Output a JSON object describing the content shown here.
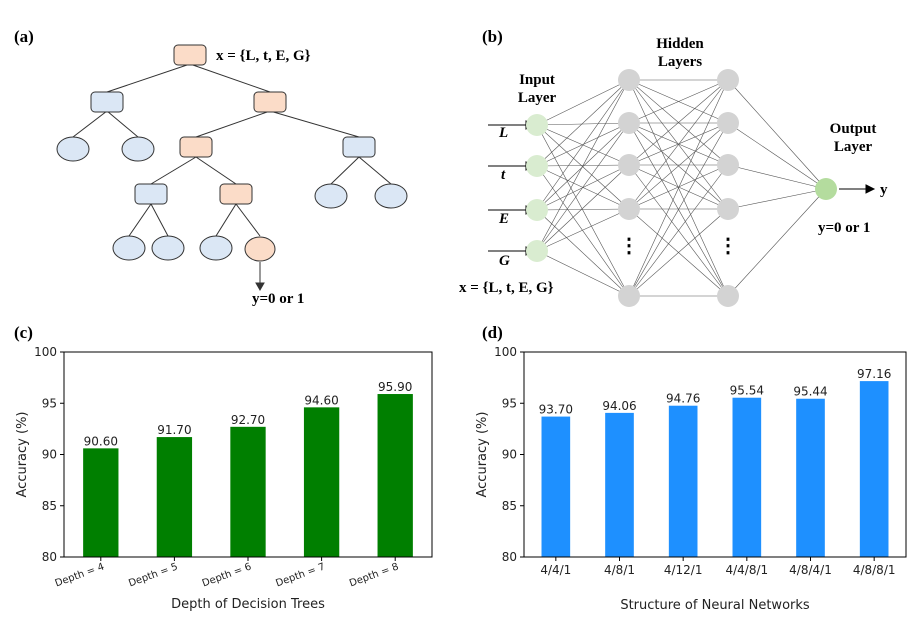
{
  "panels": {
    "a": "(a)",
    "b": "(b)",
    "c": "(c)",
    "d": "(d)"
  },
  "tree": {
    "root_annotation": "x = {L, t, E, G}",
    "output_annotation": "y=0 or 1"
  },
  "network": {
    "hidden_title_line1": "Hidden",
    "hidden_title_line2": "Layers",
    "input_title_line1": "Input",
    "input_title_line2": "Layer",
    "output_title_line1": "Output",
    "output_title_line2": "Layer",
    "inputs": [
      "L",
      "t",
      "E",
      "G"
    ],
    "output_var": "y",
    "output_annotation": "y=0 or 1",
    "input_annotation": "x = {L, t, E, G}",
    "ellipsis": "⋮"
  },
  "colors": {
    "tree_orange": "#fbdcc8",
    "tree_blue": "#dbe7f5",
    "nn_input": "#d9ecd0",
    "nn_hidden": "#d3d3d3",
    "nn_output": "#b4dc9e",
    "bar_green": "#007f00",
    "bar_blue": "#1e90ff"
  },
  "chart_data": [
    {
      "type": "bar",
      "categories": [
        "Depth = 4",
        "Depth = 5",
        "Depth = 6",
        "Depth = 7",
        "Depth = 8"
      ],
      "values": [
        90.6,
        91.7,
        92.7,
        94.6,
        95.9
      ],
      "value_labels": [
        "90.60",
        "91.70",
        "92.70",
        "94.60",
        "95.90"
      ],
      "xlabel": "Depth of Decision Trees",
      "ylabel": "Accuracy (%)",
      "ylim": [
        80,
        100
      ],
      "yticks": [
        "80",
        "85",
        "90",
        "95",
        "100"
      ],
      "color": "#007f00"
    },
    {
      "type": "bar",
      "categories": [
        "4/4/1",
        "4/8/1",
        "4/12/1",
        "4/4/8/1",
        "4/8/4/1",
        "4/8/8/1"
      ],
      "values": [
        93.7,
        94.06,
        94.76,
        95.54,
        95.44,
        97.16
      ],
      "value_labels": [
        "93.70",
        "94.06",
        "94.76",
        "95.54",
        "95.44",
        "97.16"
      ],
      "xlabel": "Structure of Neural Networks",
      "ylabel": "Accuracy (%)",
      "ylim": [
        80,
        100
      ],
      "yticks": [
        "80",
        "85",
        "90",
        "95",
        "100"
      ],
      "color": "#1e90ff"
    }
  ]
}
